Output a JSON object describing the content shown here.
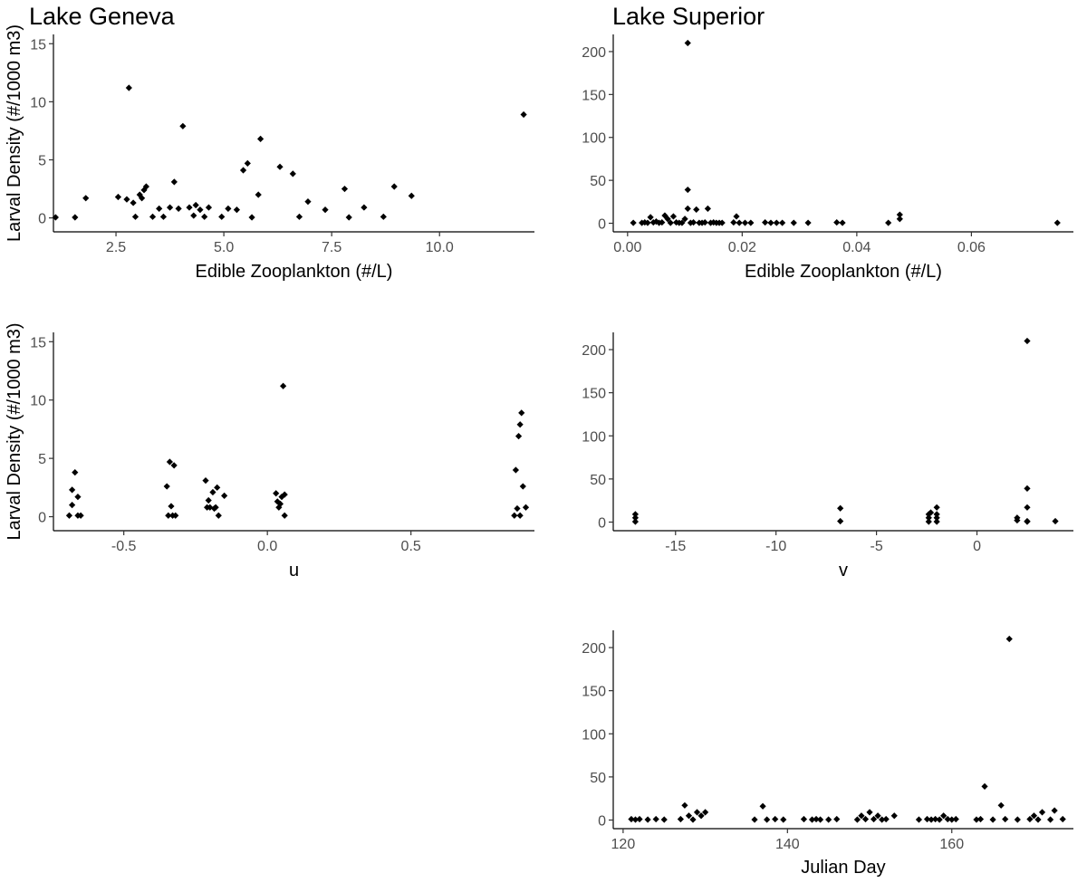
{
  "figure": {
    "titles": {
      "left": "Lake Geneva",
      "right": "Lake Superior"
    }
  },
  "chart_data": [
    {
      "id": "geneva_zoo",
      "type": "scatter",
      "title": "",
      "xlabel": "Edible Zooplankton (#/L)",
      "ylabel": "Larval Density (#/1000 m3)",
      "xlim": [
        1.05,
        12.2
      ],
      "ylim": [
        -1.2,
        15.8
      ],
      "xticks": [
        2.5,
        5.0,
        7.5,
        10.0
      ],
      "xtick_labels": [
        "2.5",
        "5.0",
        "7.5",
        "10.0"
      ],
      "yticks": [
        0,
        5,
        10,
        15
      ],
      "ytick_labels": [
        "0",
        "5",
        "10",
        "15"
      ],
      "x": [
        1.1,
        1.55,
        1.8,
        2.55,
        2.75,
        2.8,
        2.9,
        2.95,
        3.05,
        3.1,
        3.15,
        3.2,
        3.35,
        3.5,
        3.6,
        3.75,
        3.85,
        3.95,
        4.05,
        4.2,
        4.3,
        4.35,
        4.45,
        4.55,
        4.65,
        4.95,
        5.1,
        5.3,
        5.45,
        5.55,
        5.65,
        5.8,
        5.85,
        6.3,
        6.6,
        6.75,
        6.95,
        7.35,
        7.8,
        7.9,
        8.25,
        8.7,
        8.95,
        9.35,
        11.95
      ],
      "y": [
        0.05,
        0.05,
        1.7,
        1.8,
        1.6,
        11.2,
        1.3,
        0.1,
        2.0,
        1.7,
        2.4,
        2.7,
        0.1,
        0.8,
        0.1,
        0.9,
        3.1,
        0.8,
        7.9,
        0.9,
        0.2,
        1.1,
        0.7,
        0.1,
        0.9,
        0.1,
        0.8,
        0.7,
        4.1,
        4.7,
        0.05,
        2.0,
        6.8,
        4.4,
        3.8,
        0.1,
        1.4,
        0.7,
        2.5,
        0.05,
        0.9,
        0.1,
        2.7,
        1.9,
        8.9
      ]
    },
    {
      "id": "superior_zoo",
      "type": "scatter",
      "title": "",
      "xlabel": "Edible Zooplankton (#/L)",
      "ylabel": "",
      "xlim": [
        -0.0025,
        0.0778
      ],
      "ylim": [
        -10,
        220
      ],
      "xticks": [
        0.0,
        0.02,
        0.04,
        0.06
      ],
      "xtick_labels": [
        "0.00",
        "0.02",
        "0.04",
        "0.06"
      ],
      "yticks": [
        0,
        50,
        100,
        150,
        200
      ],
      "ytick_labels": [
        "0",
        "50",
        "100",
        "150",
        "200"
      ],
      "x": [
        0.001,
        0.0025,
        0.003,
        0.0035,
        0.004,
        0.0045,
        0.005,
        0.0055,
        0.006,
        0.0065,
        0.007,
        0.0075,
        0.008,
        0.0085,
        0.009,
        0.0095,
        0.01,
        0.0105,
        0.0105,
        0.0105,
        0.011,
        0.0115,
        0.012,
        0.0125,
        0.013,
        0.0135,
        0.014,
        0.0145,
        0.015,
        0.0155,
        0.016,
        0.0165,
        0.0185,
        0.019,
        0.0195,
        0.0205,
        0.0215,
        0.024,
        0.025,
        0.026,
        0.027,
        0.029,
        0.0315,
        0.0365,
        0.0375,
        0.0455,
        0.0475,
        0.0475,
        0.075
      ],
      "y": [
        0.5,
        0.5,
        1.0,
        0.5,
        7.0,
        1.0,
        2.0,
        0.5,
        1.0,
        9.0,
        5.0,
        0.5,
        8.0,
        1.0,
        0.5,
        0.5,
        5.0,
        210.0,
        39.0,
        17.0,
        0.5,
        1.0,
        16.0,
        0.5,
        0.5,
        1.0,
        17.0,
        0.5,
        1.0,
        0.5,
        0.5,
        0.5,
        1.0,
        8.0,
        0.5,
        0.5,
        0.5,
        1.0,
        0.5,
        0.5,
        0.5,
        0.5,
        0.5,
        1.0,
        0.5,
        0.5,
        10.0,
        5.0,
        0.5
      ]
    },
    {
      "id": "geneva_u",
      "type": "scatter",
      "title": "",
      "xlabel": "u",
      "ylabel": "Larval Density (#/1000 m3)",
      "xlim": [
        -0.745,
        0.93
      ],
      "ylim": [
        -1.2,
        15.8
      ],
      "xticks": [
        -0.5,
        0.0,
        0.5
      ],
      "xtick_labels": [
        "-0.5",
        "0.0",
        "0.5"
      ],
      "yticks": [
        0,
        5,
        10,
        15
      ],
      "ytick_labels": [
        "0",
        "5",
        "10",
        "15"
      ],
      "x": [
        -0.69,
        -0.68,
        -0.68,
        -0.67,
        -0.66,
        -0.66,
        -0.65,
        -0.35,
        -0.345,
        -0.34,
        -0.335,
        -0.33,
        -0.325,
        -0.32,
        -0.215,
        -0.21,
        -0.205,
        -0.2,
        -0.19,
        -0.185,
        -0.18,
        -0.175,
        -0.17,
        -0.15,
        0.03,
        0.035,
        0.04,
        0.045,
        0.05,
        0.055,
        0.06,
        0.06,
        0.86,
        0.865,
        0.87,
        0.875,
        0.88,
        0.88,
        0.885,
        0.89,
        0.9
      ],
      "y": [
        0.1,
        1.0,
        2.3,
        3.8,
        0.1,
        1.7,
        0.1,
        2.6,
        0.1,
        4.7,
        0.9,
        0.1,
        4.4,
        0.1,
        3.1,
        0.8,
        1.4,
        0.8,
        2.1,
        0.7,
        0.8,
        2.5,
        0.1,
        1.8,
        2.0,
        1.3,
        0.8,
        1.1,
        1.7,
        11.2,
        0.1,
        1.9,
        0.1,
        4.0,
        0.7,
        6.9,
        7.9,
        0.1,
        8.9,
        2.6,
        0.8
      ]
    },
    {
      "id": "superior_v",
      "type": "scatter",
      "title": "",
      "xlabel": "v",
      "ylabel": "",
      "xlim": [
        -18.1,
        4.8
      ],
      "ylim": [
        -10,
        220
      ],
      "xticks": [
        -15,
        -10,
        -5,
        0
      ],
      "xtick_labels": [
        "-15",
        "-10",
        "-5",
        "0"
      ],
      "yticks": [
        0,
        50,
        100,
        150,
        200
      ],
      "ytick_labels": [
        "0",
        "50",
        "100",
        "150",
        "200"
      ],
      "x": [
        -17.0,
        -17.0,
        -17.0,
        -6.8,
        -6.8,
        -2.4,
        -2.4,
        -2.4,
        -2.3,
        -2.0,
        -2.0,
        -2.0,
        -2.0,
        2.0,
        2.0,
        2.5,
        2.5,
        2.5,
        2.5,
        2.5,
        3.9
      ],
      "y": [
        0.5,
        5.0,
        9.0,
        1.0,
        16.0,
        0.5,
        5.0,
        9.0,
        11.0,
        0.5,
        5.0,
        9.0,
        17.0,
        2.0,
        5.0,
        210.0,
        39.0,
        17.0,
        1.0,
        0.5,
        1.0
      ]
    },
    {
      "id": "superior_julian",
      "type": "scatter",
      "title": "",
      "xlabel": "Julian Day",
      "ylabel": "",
      "xlim": [
        118.8,
        174.8
      ],
      "ylim": [
        -10,
        220
      ],
      "xticks": [
        120,
        140,
        160
      ],
      "xtick_labels": [
        "120",
        "140",
        "160"
      ],
      "yticks": [
        0,
        50,
        100,
        150,
        200
      ],
      "ytick_labels": [
        "0",
        "50",
        "100",
        "150",
        "200"
      ],
      "x": [
        121,
        121.5,
        122,
        123,
        124,
        125,
        127,
        127.5,
        128,
        128.5,
        129,
        129.5,
        130,
        136,
        137,
        137.5,
        138.5,
        139.5,
        142,
        143,
        143.5,
        144,
        145,
        146,
        148.5,
        149,
        149.5,
        150,
        150.5,
        151,
        151.5,
        152,
        153,
        156,
        157,
        157.5,
        158,
        158.5,
        159,
        159.5,
        160,
        160.5,
        163,
        163.5,
        164,
        165,
        166,
        166.5,
        167,
        168,
        169.5,
        170,
        170.5,
        171,
        172,
        172.5,
        173.5
      ],
      "y": [
        1.0,
        0.5,
        1.0,
        0.5,
        1.0,
        0.5,
        1.0,
        17.0,
        5.0,
        0.5,
        9.0,
        5.0,
        9.0,
        0.5,
        16.0,
        0.5,
        1.0,
        0.5,
        1.0,
        0.5,
        1.0,
        0.5,
        0.5,
        1.0,
        0.5,
        5.0,
        1.0,
        9.0,
        1.0,
        5.0,
        0.5,
        1.0,
        5.0,
        0.5,
        1.0,
        0.5,
        1.0,
        0.5,
        5.0,
        1.0,
        0.5,
        1.0,
        0.5,
        1.0,
        39.0,
        0.5,
        17.0,
        1.0,
        210.0,
        0.5,
        1.0,
        5.0,
        0.5,
        9.0,
        0.5,
        11.0,
        1.0
      ]
    }
  ]
}
